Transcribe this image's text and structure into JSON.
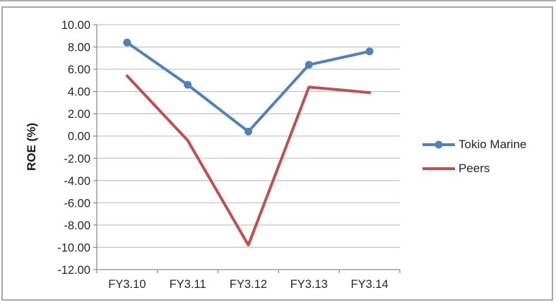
{
  "chart_data": {
    "type": "line",
    "title": "",
    "xlabel": "",
    "ylabel": "ROE (%)",
    "categories": [
      "FY3.10",
      "FY3.11",
      "FY3.12",
      "FY3.13",
      "FY3.14"
    ],
    "series": [
      {
        "name": "Tokio Marine",
        "color": "#4F81BD",
        "marker": "circle",
        "values": [
          8.4,
          4.6,
          0.4,
          6.4,
          7.6
        ]
      },
      {
        "name": "Peers",
        "color": "#C0504D",
        "marker": "none",
        "values": [
          5.4,
          -0.4,
          -9.8,
          4.4,
          3.9
        ]
      }
    ],
    "ylim": [
      -12,
      10
    ],
    "ytick_step": 2,
    "ytick_labels": [
      "10.00",
      "8.00",
      "6.00",
      "4.00",
      "2.00",
      "0.00",
      "-2.00",
      "-4.00",
      "-6.00",
      "-8.00",
      "-10.00",
      "-12.00"
    ],
    "grid": true,
    "legend_position": "right"
  },
  "colors": {
    "frame_border": "#A6A6A6",
    "grid_line": "#C6C6C6",
    "axis_line": "#8E8E8E",
    "tick_label": "#262626",
    "background": "#FFFFFF"
  }
}
